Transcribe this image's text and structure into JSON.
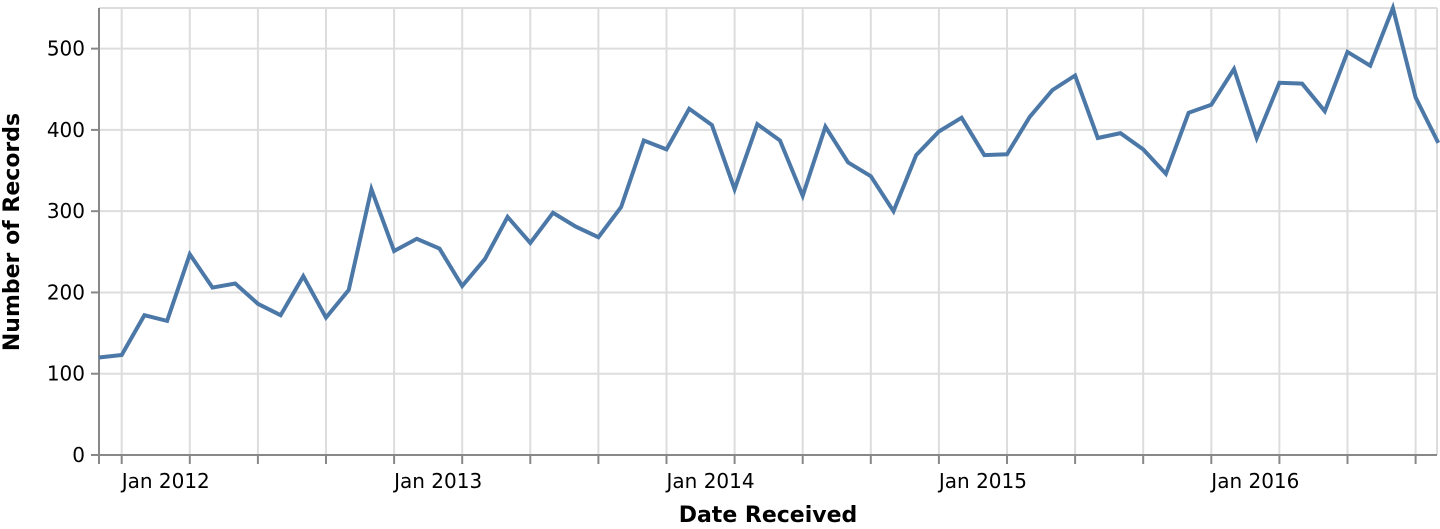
{
  "chart_data": {
    "type": "line",
    "xlabel": "Date Received",
    "ylabel": "Number of Records",
    "ylim": [
      0,
      550
    ],
    "y_ticks": [
      0,
      100,
      200,
      300,
      400,
      500
    ],
    "x_tick_labels": [
      "Jan 2012",
      "Jan 2013",
      "Jan 2014",
      "Jan 2015",
      "Jan 2016"
    ],
    "grid": true,
    "colors": {
      "series": "#4c78a8",
      "grid": "#dddddd",
      "axis": "#888888"
    },
    "x": [
      "2011-12",
      "2012-01",
      "2012-02",
      "2012-03",
      "2012-04",
      "2012-05",
      "2012-06",
      "2012-07",
      "2012-08",
      "2012-09",
      "2012-10",
      "2012-11",
      "2012-12",
      "2013-01",
      "2013-02",
      "2013-03",
      "2013-04",
      "2013-05",
      "2013-06",
      "2013-07",
      "2013-08",
      "2013-09",
      "2013-10",
      "2013-11",
      "2013-12",
      "2014-01",
      "2014-02",
      "2014-03",
      "2014-04",
      "2014-05",
      "2014-06",
      "2014-07",
      "2014-08",
      "2014-09",
      "2014-10",
      "2014-11",
      "2014-12",
      "2015-01",
      "2015-02",
      "2015-03",
      "2015-04",
      "2015-05",
      "2015-06",
      "2015-07",
      "2015-08",
      "2015-09",
      "2015-10",
      "2015-11",
      "2015-12",
      "2016-01",
      "2016-02",
      "2016-03",
      "2016-04",
      "2016-05",
      "2016-06",
      "2016-07",
      "2016-08",
      "2016-09",
      "2016-10",
      "2016-11"
    ],
    "series": [
      {
        "values": [
          120,
          123,
          172,
          165,
          247,
          206,
          211,
          186,
          172,
          220,
          169,
          203,
          327,
          251,
          266,
          254,
          208,
          241,
          293,
          261,
          298,
          281,
          268,
          305,
          387,
          376,
          426,
          406,
          327,
          407,
          387,
          319,
          404,
          360,
          343,
          300,
          369,
          398,
          415,
          369,
          370,
          416,
          449,
          467,
          390,
          396,
          376,
          346,
          421,
          431,
          475,
          390,
          458,
          457,
          423,
          496,
          479,
          550,
          440,
          384
        ]
      }
    ]
  }
}
